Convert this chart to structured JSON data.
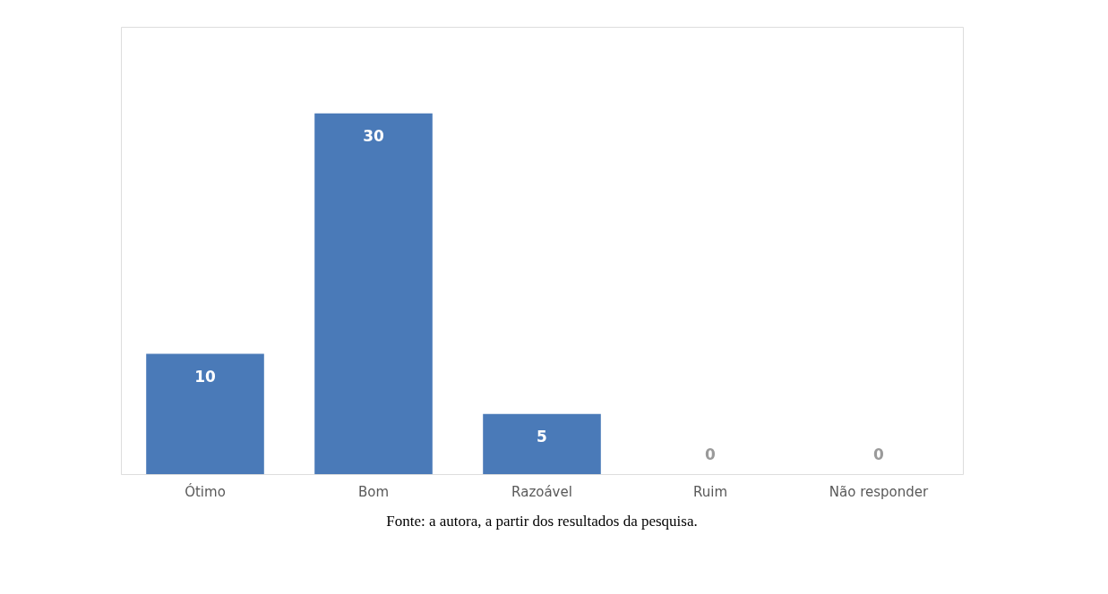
{
  "chart_data": {
    "type": "bar",
    "categories": [
      "Ótimo",
      "Bom",
      "Razoável",
      "Ruim",
      "Não responder"
    ],
    "values": [
      10,
      30,
      5,
      0,
      0
    ],
    "color": "#4a7ab8",
    "data_labels": true,
    "annotations": [
      "Fonte: a autora, a partir dos resultados da pesquisa."
    ]
  }
}
